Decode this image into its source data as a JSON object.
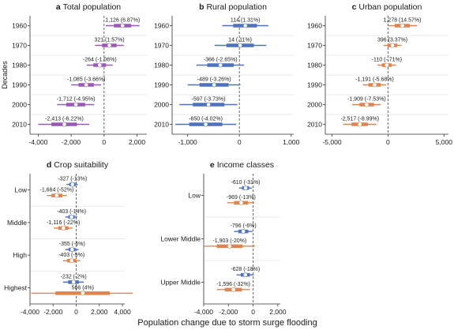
{
  "colors": {
    "total": "#9b59b6",
    "rural": "#4f72be",
    "urban": "#dd8452",
    "crop_low": "#dd8452",
    "income_low": "#dd8452",
    "ref_line": "#555555",
    "grid": "#e3e3e3",
    "axis": "#333333"
  },
  "figure": {
    "xlabel": "Population change due to storm surge flooding"
  },
  "chart_data": [
    {
      "panel_id": "a",
      "type": "interval",
      "title_letter": "a",
      "title": "Total population",
      "ylabel": "Decades",
      "categories": [
        "1960",
        "1970",
        "1980",
        "1990",
        "2000",
        "2010"
      ],
      "xlim": [
        -4500,
        2600
      ],
      "xticks": [
        -4000,
        -2000,
        0,
        2000
      ],
      "xtick_labels": [
        "-4,000",
        "-2,000",
        "0",
        "2,000"
      ],
      "series": [
        {
          "color_key": "total",
          "points": [
            {
              "cat": 0,
              "value": 1126,
              "label": "1,126 (6.87%)",
              "ci_inner": [
                600,
                1650
              ],
              "ci_outer": [
                100,
                2150
              ]
            },
            {
              "cat": 1,
              "value": 321,
              "label": "321 (1.57%)",
              "ci_inner": [
                -120,
                760
              ],
              "ci_outer": [
                -550,
                1200
              ]
            },
            {
              "cat": 2,
              "value": -264,
              "label": "-264 (-1.06%)",
              "ci_inner": [
                -650,
                120
              ],
              "ci_outer": [
                -1050,
                520
              ]
            },
            {
              "cat": 3,
              "value": -1085,
              "label": "-1,085 (-3.66%)",
              "ci_inner": [
                -1550,
                -620
              ],
              "ci_outer": [
                -2000,
                -180
              ]
            },
            {
              "cat": 4,
              "value": -1712,
              "label": "-1,712 (-4.95%)",
              "ci_inner": [
                -2300,
                -1150
              ],
              "ci_outer": [
                -2850,
                -600
              ]
            },
            {
              "cat": 5,
              "value": -2413,
              "label": "-2,413 (-6.22%)",
              "ci_inner": [
                -3200,
                -1650
              ],
              "ci_outer": [
                -4000,
                -900
              ]
            }
          ]
        }
      ]
    },
    {
      "panel_id": "b",
      "type": "interval",
      "title_letter": "b",
      "title": "Rural population",
      "ylabel": "",
      "categories": [
        "1960",
        "1970",
        "1980",
        "1990",
        "2000",
        "2010"
      ],
      "xlim": [
        -1300,
        1050
      ],
      "xticks": [
        -1000,
        0,
        1000
      ],
      "xtick_labels": [
        "-1,000",
        "0",
        "1,000"
      ],
      "series": [
        {
          "color_key": "rural",
          "points": [
            {
              "cat": 0,
              "value": 114,
              "label": "114 (1.31%)",
              "ci_inner": [
                -120,
                340
              ],
              "ci_outer": [
                -330,
                560
              ]
            },
            {
              "cat": 1,
              "value": 14,
              "label": "14 (.11%)",
              "ci_inner": [
                -250,
                280
              ],
              "ci_outer": [
                -480,
                520
              ]
            },
            {
              "cat": 2,
              "value": -366,
              "label": "-366 (-2.65%)",
              "ci_inner": [
                -620,
                -110
              ],
              "ci_outer": [
                -830,
                90
              ]
            },
            {
              "cat": 3,
              "value": -489,
              "label": "-489 (-3.26%)",
              "ci_inner": [
                -770,
                -210
              ],
              "ci_outer": [
                -1000,
                20
              ]
            },
            {
              "cat": 4,
              "value": -597,
              "label": "-597 (-3.73%)",
              "ci_inner": [
                -900,
                -290
              ],
              "ci_outer": [
                -1160,
                -40
              ]
            },
            {
              "cat": 5,
              "value": -650,
              "label": "-650 (-4.02%)",
              "ci_inner": [
                -970,
                -330
              ],
              "ci_outer": [
                -1240,
                -60
              ]
            }
          ]
        }
      ]
    },
    {
      "panel_id": "c",
      "type": "interval",
      "title_letter": "c",
      "title": "Urban population",
      "ylabel": "",
      "categories": [
        "1960",
        "1970",
        "1980",
        "1990",
        "2000",
        "2010"
      ],
      "xlim": [
        -5600,
        5400
      ],
      "xticks": [
        -5000,
        0,
        5000
      ],
      "xtick_labels": [
        "-5,000",
        "0",
        "5,000"
      ],
      "series": [
        {
          "color_key": "urban",
          "points": [
            {
              "cat": 0,
              "value": 1278,
              "label": "1,278 (14.57%)",
              "ci_inner": [
                600,
                1950
              ],
              "ci_outer": [
                50,
                2600
              ]
            },
            {
              "cat": 1,
              "value": 396,
              "label": "396 (3.37%)",
              "ci_inner": [
                -50,
                820
              ],
              "ci_outer": [
                -400,
                1200
              ]
            },
            {
              "cat": 2,
              "value": -110,
              "label": "-110 (-.71%)",
              "ci_inner": [
                -550,
                330
              ],
              "ci_outer": [
                -950,
                720
              ]
            },
            {
              "cat": 3,
              "value": -1191,
              "label": "-1,191 (-5.68%)",
              "ci_inner": [
                -1750,
                -650
              ],
              "ci_outer": [
                -2250,
                -150
              ]
            },
            {
              "cat": 4,
              "value": -1909,
              "label": "-1,909 (-7.53%)",
              "ci_inner": [
                -2550,
                -1250
              ],
              "ci_outer": [
                -3200,
                -650
              ]
            },
            {
              "cat": 5,
              "value": -2517,
              "label": "-2,517 (-8.99%)",
              "ci_inner": [
                -3250,
                -1800
              ],
              "ci_outer": [
                -4000,
                -1050
              ]
            }
          ]
        }
      ]
    },
    {
      "panel_id": "d",
      "type": "interval",
      "title_letter": "d",
      "title": "Crop suitability",
      "ylabel": "",
      "categories": [
        "Low",
        "Middle",
        "High",
        "Highest"
      ],
      "xlim": [
        -4000,
        4200
      ],
      "xticks": [
        -4000,
        -2000,
        0,
        2000,
        4000
      ],
      "xtick_labels": [
        "-4,000",
        "-2,000",
        "0",
        "2,000",
        "4,000"
      ],
      "series": [
        {
          "color_key": "rural",
          "offset": -1,
          "points": [
            {
              "cat": 0,
              "value": -327,
              "label": "-327 (-13%)",
              "ci_inner": [
                -600,
                -60
              ],
              "ci_outer": [
                -850,
                150
              ]
            },
            {
              "cat": 1,
              "value": -403,
              "label": "-403 (-14%)",
              "ci_inner": [
                -680,
                -130
              ],
              "ci_outer": [
                -950,
                100
              ]
            },
            {
              "cat": 2,
              "value": -355,
              "label": "-355 (-6%)",
              "ci_inner": [
                -650,
                -60
              ],
              "ci_outer": [
                -950,
                200
              ]
            },
            {
              "cat": 3,
              "value": -232,
              "label": "-232 (-2%)",
              "ci_inner": [
                -700,
                230
              ],
              "ci_outer": [
                -1150,
                650
              ]
            }
          ]
        },
        {
          "color_key": "crop_low",
          "offset": 1,
          "points": [
            {
              "cat": 0,
              "value": -1684,
              "label": "-1,684 (-52%)",
              "ci_inner": [
                -2150,
                -1200
              ],
              "ci_outer": [
                -2550,
                -800
              ]
            },
            {
              "cat": 1,
              "value": -1116,
              "label": "-1,116 (-22%)",
              "ci_inner": [
                -1550,
                -680
              ],
              "ci_outer": [
                -1950,
                -300
              ]
            },
            {
              "cat": 2,
              "value": -403,
              "label": "-403 (-5%)",
              "ci_inner": [
                -800,
                0
              ],
              "ci_outer": [
                -1150,
                350
              ]
            },
            {
              "cat": 3,
              "value": 566,
              "label": "566 (4%)",
              "ci_inner": [
                -1800,
                2900
              ],
              "ci_outer": [
                -3900,
                4900
              ]
            }
          ]
        }
      ]
    },
    {
      "panel_id": "e",
      "type": "interval",
      "title_letter": "e",
      "title": "Income classes",
      "ylabel": "",
      "categories": [
        "Low",
        "Lower Middle",
        "Upper Middle"
      ],
      "xlim": [
        -4000,
        2200
      ],
      "xticks": [
        -4000,
        -2000,
        0,
        2000
      ],
      "xtick_labels": [
        "-4,000",
        "-2,000",
        "0",
        "2,000"
      ],
      "series": [
        {
          "color_key": "rural",
          "offset": -1,
          "points": [
            {
              "cat": 0,
              "value": -610,
              "label": "-610 (-31%)",
              "ci_inner": [
                -900,
                -320
              ],
              "ci_outer": [
                -1150,
                -80
              ]
            },
            {
              "cat": 1,
              "value": -796,
              "label": "-796 (-6%)",
              "ci_inner": [
                -1200,
                -390
              ],
              "ci_outer": [
                -1550,
                -50
              ]
            },
            {
              "cat": 2,
              "value": -628,
              "label": "-628 (-18%)",
              "ci_inner": [
                -1000,
                -260
              ],
              "ci_outer": [
                -1350,
                50
              ]
            }
          ]
        },
        {
          "color_key": "income_low",
          "offset": 1,
          "points": [
            {
              "cat": 0,
              "value": -969,
              "label": "-969 (-13%)",
              "ci_inner": [
                -1550,
                -400
              ],
              "ci_outer": [
                -2100,
                100
              ]
            },
            {
              "cat": 1,
              "value": -1903,
              "label": "-1,903 (-20%)",
              "ci_inner": [
                -2950,
                -850
              ],
              "ci_outer": [
                -4000,
                150
              ]
            },
            {
              "cat": 2,
              "value": -1596,
              "label": "-1,596 (-32%)",
              "ci_inner": [
                -2300,
                -900
              ],
              "ci_outer": [
                -2950,
                -250
              ]
            }
          ]
        }
      ]
    }
  ]
}
